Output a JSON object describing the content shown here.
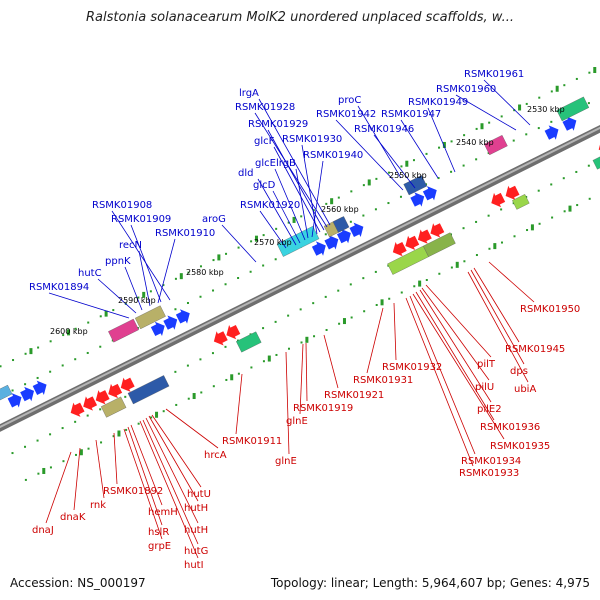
{
  "title": "Ralstonia solanacearum MolK2 unordered unplaced scaffolds, w...",
  "footer": {
    "accession": "Accession: NS_000197",
    "stats": "Topology: linear; Length: 5,964,607 bp; Genes: 4,975"
  },
  "colors": {
    "plus_label": "#0000cc",
    "minus_label": "#cc0000",
    "backbone": "#808080",
    "plus_arrow": "#1a3cff",
    "minus_arrow": "#ff2020",
    "tick": "#2a9a2a"
  },
  "position_marks": [
    "2530 kbp",
    "2540 kbp",
    "2550 kbp",
    "2560 kbp",
    "2570 kbp",
    "2580 kbp",
    "2590 kbp",
    "2600 kbp"
  ],
  "plus_labels": [
    "RSMK01961",
    "RSMK01960",
    "RSMK01949",
    "RSMK01947",
    "proC",
    "RSMK01942",
    "RSMK01946",
    "lrgA",
    "RSMK01928",
    "RSMK01929",
    "glcF",
    "RSMK01930",
    "RSMK01940",
    "glcE",
    "lrgB",
    "dld",
    "glcD",
    "RSMK01920",
    "aroG",
    "RSMK01908",
    "RSMK01909",
    "RSMK01910",
    "recN",
    "ppnK",
    "hutC",
    "RSMK01894"
  ],
  "minus_labels": [
    "RSMK01950",
    "RSMK01945",
    "dps",
    "ubiA",
    "pilT",
    "pilU",
    "pilE2",
    "RSMK01936",
    "RSMK01935",
    "RSMK01934",
    "RSMK01933",
    "RSMK01932",
    "RSMK01931",
    "RSMK01921",
    "RSMK01919",
    "glnE",
    "glnE",
    "RSMK01911",
    "hrcA",
    "hutU",
    "hutH",
    "hutH",
    "hutG",
    "hutI",
    "RSMK01892",
    "hemH",
    "hslR",
    "grpE",
    "rnk",
    "dnaK",
    "dnaJ"
  ]
}
